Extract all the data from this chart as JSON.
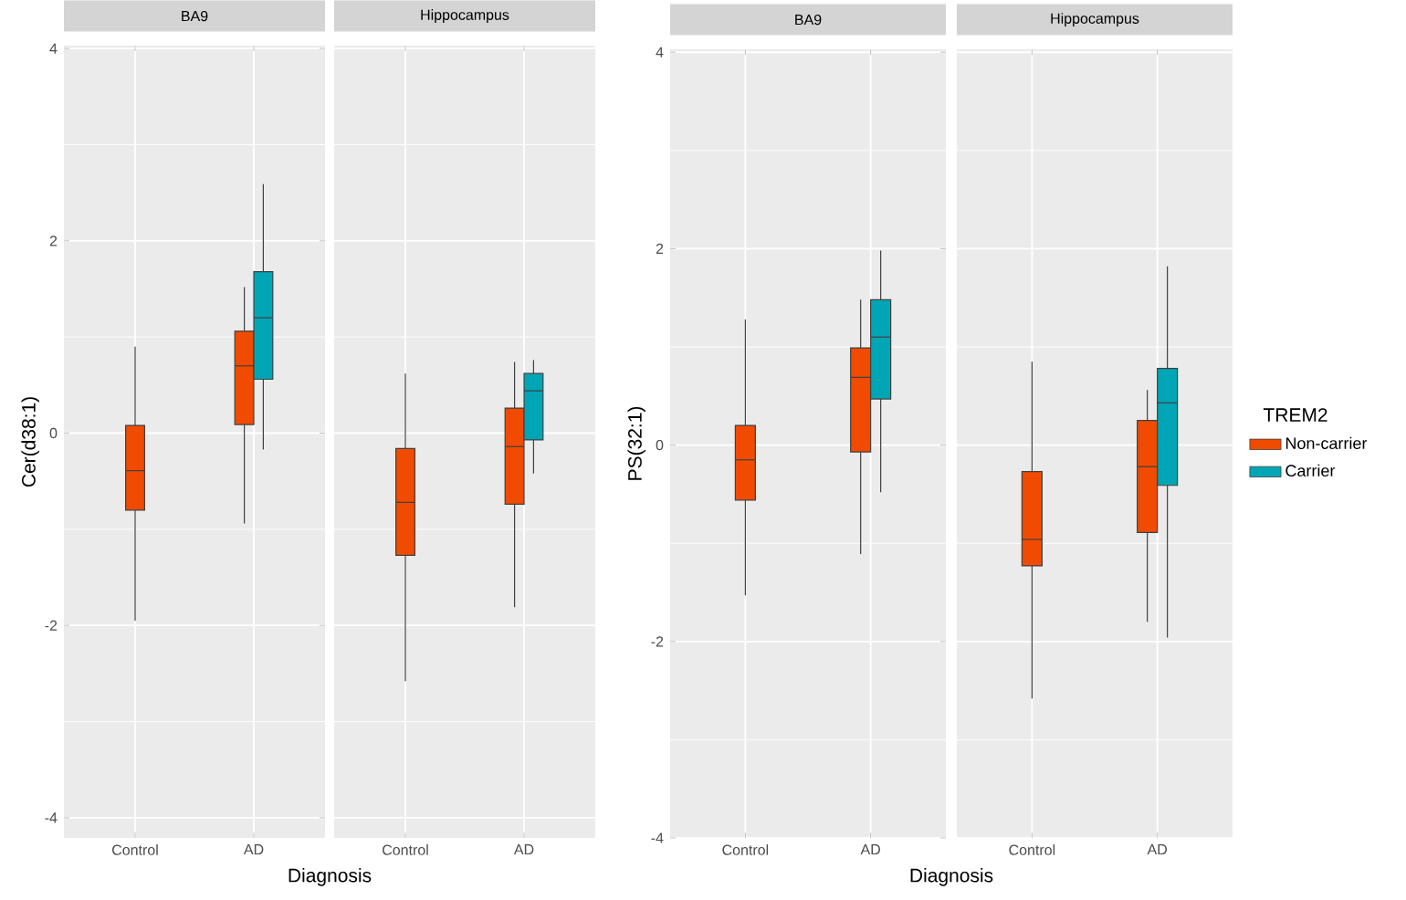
{
  "chart_data": [
    {
      "type": "box",
      "title": "BA9",
      "xlabel": "Diagnosis",
      "ylabel": "Cer(d38:1)",
      "categories": [
        "Control",
        "AD"
      ],
      "ylim": [
        -4.21,
        4.03
      ],
      "yticks": [
        -4,
        -2,
        0,
        2,
        4
      ],
      "grid": true,
      "series": [
        {
          "color": "#f04b00",
          "boxes": [
            {
              "low": -1.95,
              "q1": -0.8,
              "median": -0.39,
              "q3": 0.08,
              "high": 0.9
            },
            {
              "low": -0.94,
              "q1": 0.09,
              "median": 0.7,
              "q3": 1.06,
              "high": 1.52
            }
          ]
        },
        {
          "color": "#00a6b5",
          "boxes": [
            null,
            {
              "low": -0.17,
              "q1": 0.56,
              "median": 1.2,
              "q3": 1.68,
              "high": 2.59
            }
          ]
        }
      ]
    },
    {
      "type": "box",
      "title": "Hippocampus",
      "categories": [
        "Control",
        "AD"
      ],
      "ylim": [
        -4.21,
        4.03
      ],
      "yticks": [
        -4,
        -2,
        0,
        2,
        4
      ],
      "grid": true,
      "tick_labels": "x",
      "series": [
        {
          "color": "#f04b00",
          "boxes": [
            {
              "low": -2.58,
              "q1": -1.27,
              "median": -0.72,
              "q3": -0.16,
              "high": 0.62
            },
            {
              "low": -1.81,
              "q1": -0.74,
              "median": -0.14,
              "q3": 0.26,
              "high": 0.74
            }
          ]
        },
        {
          "color": "#00a6b5",
          "boxes": [
            null,
            {
              "low": -0.42,
              "q1": -0.07,
              "median": 0.44,
              "q3": 0.62,
              "high": 0.76
            }
          ]
        }
      ]
    },
    {
      "type": "box",
      "title": "BA9",
      "xlabel": "Diagnosis",
      "ylabel": "PS(32:1)",
      "categories": [
        "Control",
        "AD"
      ],
      "ylim": [
        -4.0,
        4.03
      ],
      "yticks": [
        -4,
        -2,
        0,
        2,
        4
      ],
      "grid": true,
      "series": [
        {
          "color": "#f04b00",
          "boxes": [
            {
              "low": -1.53,
              "q1": -0.56,
              "median": -0.15,
              "q3": 0.2,
              "high": 1.28
            },
            {
              "low": -1.11,
              "q1": -0.07,
              "median": 0.69,
              "q3": 0.99,
              "high": 1.48
            }
          ]
        },
        {
          "color": "#00a6b5",
          "boxes": [
            null,
            {
              "low": -0.48,
              "q1": 0.47,
              "median": 1.1,
              "q3": 1.48,
              "high": 1.98
            }
          ]
        }
      ]
    },
    {
      "type": "box",
      "title": "Hippocampus",
      "categories": [
        "Control",
        "AD"
      ],
      "ylim": [
        -4.0,
        4.03
      ],
      "yticks": [
        -4,
        -2,
        0,
        2,
        4
      ],
      "grid": true,
      "tick_labels": "x",
      "legend": "right",
      "legend_title": "TREM2",
      "series": [
        {
          "name": "Non-carrier",
          "color": "#f04b00",
          "boxes": [
            {
              "low": -2.58,
              "q1": -1.23,
              "median": -0.96,
              "q3": -0.27,
              "high": 0.85
            },
            {
              "low": -1.8,
              "q1": -0.89,
              "median": -0.22,
              "q3": 0.25,
              "high": 0.56
            }
          ]
        },
        {
          "name": "Carrier",
          "color": "#00a6b5",
          "boxes": [
            null,
            {
              "low": -1.96,
              "q1": -0.41,
              "median": 0.43,
              "q3": 0.78,
              "high": 1.82
            }
          ]
        }
      ]
    }
  ]
}
